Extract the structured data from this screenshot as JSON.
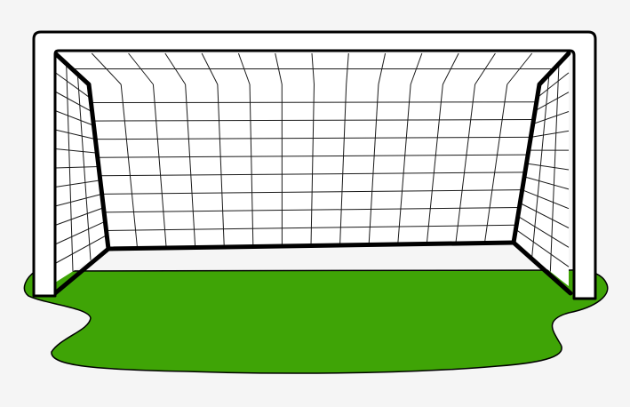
{
  "scene": {
    "subject": "soccer-goal-clipart",
    "colors": {
      "background": "#f5f5f5",
      "grass": "#3fa406",
      "frame": "#ffffff",
      "outline": "#000000",
      "net": "#ffffff",
      "net_lines": "#1a1a1a"
    },
    "net_grid": {
      "back_columns": 14,
      "back_rows": 9,
      "side_columns": 3,
      "side_rows": 12,
      "top_columns": 14,
      "top_rows": 2
    }
  }
}
